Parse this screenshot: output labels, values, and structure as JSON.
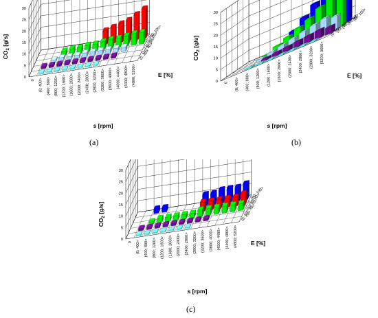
{
  "figure": {
    "captions": [
      "(a)",
      "(b)",
      "(c)"
    ]
  },
  "series_colors": {
    "(0; 20>": "#66ffff",
    "(20; 40>": "#6a0d8f",
    "(40; 60>": "#a8d8ff",
    "(60; 80>": "#00ee00",
    "(80; 100>": "#ff0000",
    "top": "#0000ff"
  },
  "chart_data": [
    {
      "type": "bar",
      "subtype": "3d-bar",
      "caption": "(a)",
      "ylabel": "CO",
      "ylabel_sub": "2",
      "ylabel_unit": " [g/s]",
      "xlabel": "s [rpm]",
      "zlabel": "E [%]",
      "ylim": [
        0,
        30
      ],
      "yticks": [
        0,
        5,
        10,
        15,
        20,
        25,
        30
      ],
      "categories": [
        "0",
        "(0; 400>",
        "(400; 800>",
        "(800; 1200>",
        "(1200; 1600>",
        "(1600; 2000>",
        "(2000; 2400>",
        "(2400; 2800>",
        "(2800; 3200>",
        "(3200; 3600>",
        "(3600; 4000>",
        "(4000; 4400>",
        "(4400; 4800>",
        "(4800; 5200>"
      ],
      "zcategories": [
        "(0; 20>",
        "(20; 40>",
        "(40; 60>",
        "(60; 80>",
        "(80; 100>"
      ],
      "zcolors": [
        "#66ffff",
        "#6a0d8f",
        "#a8d8ff",
        "#00ee00",
        "#ff0000"
      ],
      "series": [
        {
          "name": "(0; 20>",
          "values": [
            0,
            0.5,
            0.5,
            0.5,
            0.5,
            0.5,
            0.5,
            0.5,
            0.5,
            0,
            0,
            0,
            0,
            0
          ]
        },
        {
          "name": "(20; 40>",
          "values": [
            0,
            1,
            1,
            1,
            1,
            1,
            1,
            1,
            1,
            1,
            1,
            0,
            0,
            0
          ]
        },
        {
          "name": "(40; 60>",
          "values": [
            0,
            0,
            1,
            1.5,
            1.5,
            1.5,
            2,
            2,
            2,
            2,
            2,
            2,
            0,
            0
          ]
        },
        {
          "name": "(60; 80>",
          "values": [
            0,
            0,
            0,
            2,
            2.5,
            2.5,
            3,
            3,
            3.5,
            4,
            4,
            4.5,
            5,
            5
          ]
        },
        {
          "name": "(80; 100>",
          "values": [
            0,
            0,
            0,
            0,
            0,
            0,
            0,
            0,
            6,
            7,
            8,
            9,
            11,
            13
          ]
        }
      ]
    },
    {
      "type": "bar",
      "subtype": "3d-bar",
      "caption": "(b)",
      "ylabel": "CO",
      "ylabel_sub": "2",
      "ylabel_unit": " [g/s]",
      "xlabel": "s [rpm]",
      "zlabel": "E [%]",
      "ylim": [
        0,
        30
      ],
      "yticks": [
        0,
        5,
        10,
        15,
        20,
        25,
        30
      ],
      "categories": [
        "0",
        "(0; 400>",
        "(400; 800>",
        "(800; 1200>",
        "(1200; 1600>",
        "(1600; 2000>",
        "(2000; 2400>",
        "(2400; 2800>",
        "(2800; 3200>",
        "(3200; 3600>"
      ],
      "zcategories": [
        "(0; 20>",
        "(20; 40>",
        "(40; 60>",
        "(60; 80>",
        "(80; 100>"
      ],
      "zcolors": [
        "#66ffff",
        "#6a0d8f",
        "#a8d8ff",
        "#00ee00",
        "#0000ff"
      ],
      "series": [
        {
          "name": "(0; 20>",
          "values": [
            0,
            0,
            0.5,
            0.5,
            0.5,
            0.5,
            0.5,
            0.5,
            0.5,
            0
          ]
        },
        {
          "name": "(20; 40>",
          "values": [
            0,
            0,
            0,
            1,
            1.5,
            2,
            2.5,
            3,
            3.5,
            3
          ]
        },
        {
          "name": "(40; 60>",
          "values": [
            0,
            0,
            1,
            2,
            3,
            4,
            5,
            6,
            7,
            6
          ]
        },
        {
          "name": "(60; 80>",
          "values": [
            0,
            0,
            1,
            3,
            5,
            7,
            9,
            12,
            15,
            16
          ]
        },
        {
          "name": "(80; 100>",
          "values": [
            0,
            0,
            0,
            2,
            6,
            10,
            14,
            18,
            22,
            24
          ]
        }
      ]
    },
    {
      "type": "bar",
      "subtype": "3d-bar",
      "caption": "(c)",
      "ylabel": "CO",
      "ylabel_sub": "2",
      "ylabel_unit": " [g/s]",
      "xlabel": "s [rpm]",
      "zlabel": "E [%]",
      "ylim": [
        0,
        30
      ],
      "yticks": [
        0,
        5,
        10,
        15,
        20,
        25,
        30
      ],
      "categories": [
        "0",
        "(0; 400>",
        "(400; 800>",
        "(800; 1200>",
        "(1200; 1600>",
        "(1600; 2000>",
        "(2000; 2400>",
        "(2400; 2800>",
        "(2800; 3200>",
        "(3200; 3600>",
        "(3600; 4000>",
        "(4000; 4400>",
        "(4400; 4800>",
        "(4800; 5200>"
      ],
      "zcategories": [
        "(0; 20>",
        "(20; 40>",
        "(40; 60>",
        "(60; 80>",
        "(80; 100>"
      ],
      "zcolors": [
        "#66ffff",
        "#6a0d8f",
        "#00ee00",
        "#ff0000",
        "#0000ff"
      ],
      "series": [
        {
          "name": "(0; 20>",
          "values": [
            0,
            0.5,
            0.5,
            0.5,
            0.5,
            0.5,
            0.5,
            0.5,
            0,
            0,
            0,
            0,
            0,
            0
          ]
        },
        {
          "name": "(20; 40>",
          "values": [
            0,
            1,
            1,
            1,
            1,
            1,
            1,
            1,
            1,
            1,
            0,
            0,
            0,
            0
          ]
        },
        {
          "name": "(40; 60>",
          "values": [
            0,
            0,
            1,
            2,
            2,
            2,
            2,
            2,
            3,
            3,
            3,
            3,
            3,
            3
          ]
        },
        {
          "name": "(60; 80>",
          "values": [
            0,
            0,
            0,
            0,
            0,
            0,
            0,
            0,
            4,
            4,
            4,
            4,
            4,
            5
          ]
        },
        {
          "name": "(80; 100>",
          "values": [
            0,
            0,
            2,
            2,
            0,
            0,
            0,
            0,
            5,
            5,
            6,
            6,
            6,
            7
          ]
        }
      ]
    }
  ]
}
